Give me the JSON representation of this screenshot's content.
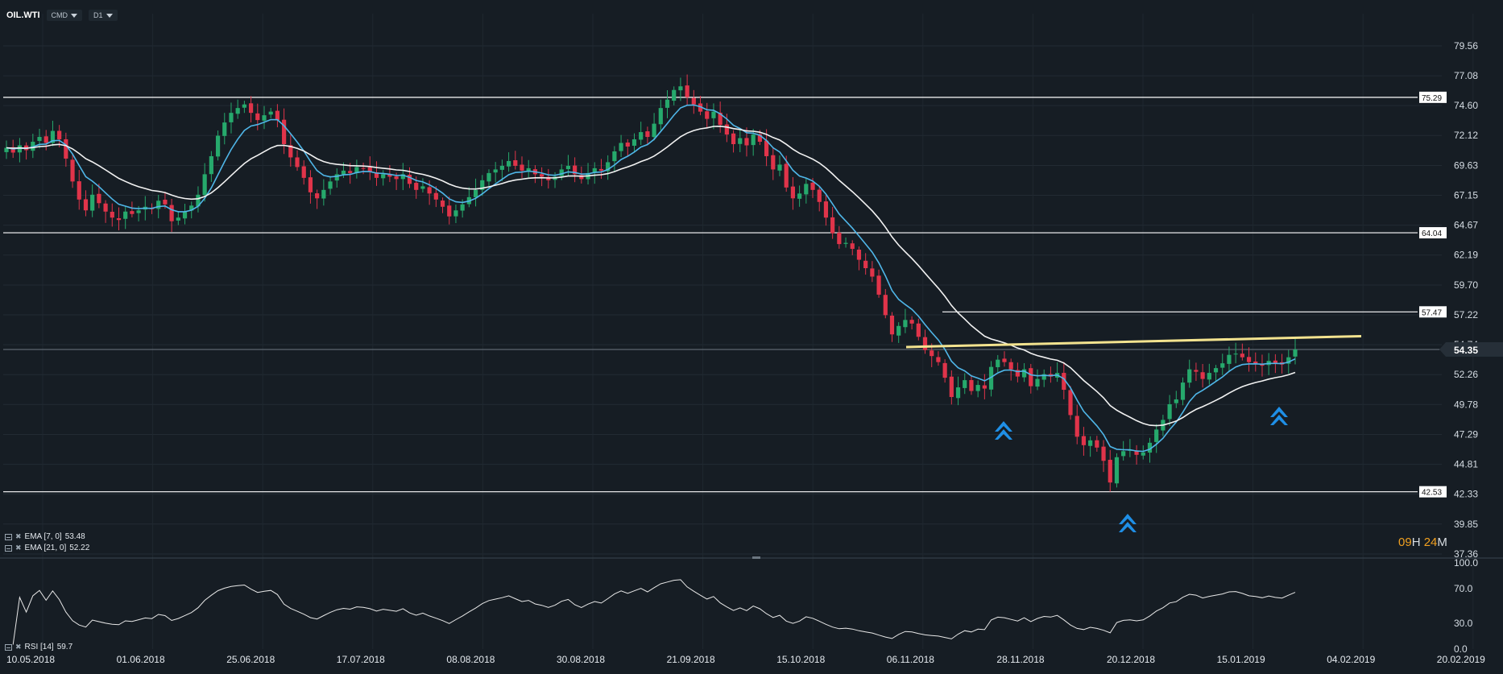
{
  "toolbar": {
    "symbol": "OIL.WTI",
    "type_label": "CMD",
    "timeframe": "D1"
  },
  "chart_data": {
    "type": "candlestick",
    "title": "",
    "y_ticks": [
      79.56,
      77.08,
      74.6,
      72.12,
      69.63,
      67.15,
      64.67,
      62.19,
      59.7,
      57.22,
      54.74,
      52.26,
      49.78,
      47.29,
      44.81,
      42.33,
      39.85,
      37.36
    ],
    "ylim": [
      37.36,
      79.56
    ],
    "x_labels": [
      "10.05.2018",
      "01.06.2018",
      "25.06.2018",
      "17.07.2018",
      "08.08.2018",
      "30.08.2018",
      "21.09.2018",
      "15.10.2018",
      "06.11.2018",
      "28.11.2018",
      "20.12.2018",
      "15.01.2019",
      "04.02.2019",
      "20.02.2019"
    ],
    "current_price": "54.35",
    "horizontal_levels": [
      {
        "value": 75.29,
        "label": "75.29"
      },
      {
        "value": 64.04,
        "label": "64.04"
      },
      {
        "value": 57.47,
        "label": "57.47"
      },
      {
        "value": 42.53,
        "label": "42.53"
      }
    ],
    "trendline": {
      "from": [
        0.0,
        54.55
      ],
      "to": [
        1.0,
        55.45
      ],
      "color": "#f3e38f"
    },
    "close_prices": [
      71.1,
      70.7,
      71.3,
      70.9,
      71.6,
      72.0,
      71.5,
      72.5,
      71.8,
      70.2,
      68.3,
      66.8,
      65.9,
      67.2,
      66.5,
      65.8,
      65.3,
      65.1,
      65.8,
      65.6,
      65.9,
      66.2,
      66.0,
      66.7,
      66.4,
      65.0,
      65.3,
      65.8,
      66.3,
      67.2,
      68.9,
      70.4,
      72.1,
      73.2,
      74.0,
      74.4,
      74.7,
      74.0,
      73.4,
      73.8,
      74.1,
      73.4,
      71.4,
      70.3,
      69.5,
      68.6,
      67.4,
      66.9,
      67.6,
      68.3,
      68.9,
      69.2,
      69.0,
      69.5,
      69.4,
      69.1,
      68.6,
      68.9,
      68.7,
      68.5,
      68.9,
      68.1,
      67.6,
      67.9,
      67.3,
      66.8,
      66.2,
      65.4,
      65.9,
      66.4,
      67.0,
      67.6,
      68.4,
      69.0,
      69.3,
      69.6,
      70.0,
      69.6,
      69.2,
      69.4,
      68.9,
      68.7,
      68.4,
      68.7,
      69.3,
      69.6,
      68.9,
      68.5,
      69.0,
      69.4,
      69.2,
      69.9,
      70.8,
      71.5,
      71.2,
      71.8,
      72.4,
      72.0,
      73.1,
      74.4,
      75.1,
      75.9,
      76.2,
      75.3,
      74.7,
      74.1,
      73.5,
      74.1,
      73.0,
      72.2,
      71.4,
      71.9,
      71.3,
      72.2,
      71.6,
      70.4,
      69.3,
      69.7,
      67.8,
      66.9,
      67.3,
      68.1,
      67.6,
      66.6,
      65.3,
      64.0,
      63.1,
      63.2,
      62.7,
      61.8,
      61.1,
      60.4,
      58.9,
      57.2,
      55.6,
      56.3,
      56.8,
      56.5,
      55.4,
      54.3,
      53.8,
      53.3,
      52.0,
      50.4,
      51.2,
      51.8,
      50.9,
      51.4,
      51.1,
      52.9,
      53.5,
      53.3,
      52.7,
      52.1,
      52.7,
      51.3,
      51.9,
      52.3,
      52.1,
      52.4,
      51.0,
      48.9,
      47.1,
      46.4,
      46.8,
      46.2,
      45.1,
      43.3,
      45.4,
      45.9,
      46.0,
      45.6,
      45.8,
      46.6,
      47.7,
      48.5,
      49.8,
      50.2,
      51.6,
      52.7,
      52.5,
      51.9,
      52.4,
      52.8,
      53.2,
      53.9,
      54.0,
      53.7,
      53.3,
      53.2,
      53.0,
      53.4,
      53.2,
      53.1,
      53.7,
      54.35
    ],
    "series": [
      {
        "name": "EMA [7, 0]",
        "legend_value": "53.48",
        "color": "#4fb6e8"
      },
      {
        "name": "EMA [21, 0]",
        "legend_value": "52.22",
        "color": "#f2f2f2"
      }
    ],
    "rsi": {
      "name": "RSI [14]",
      "legend_value": "59.7",
      "y_ticks": [
        100.0,
        70.0,
        30.0,
        0.0
      ],
      "ylim": [
        0,
        100
      ]
    },
    "annotations": [
      "blue-up-arrow",
      "blue-up-arrow",
      "blue-up-arrow"
    ],
    "up_color": "#26a96c",
    "down_color": "#e0344a",
    "grid": true
  },
  "timer": {
    "hours": "09",
    "h": "H",
    "minutes": "24",
    "m": "M"
  }
}
